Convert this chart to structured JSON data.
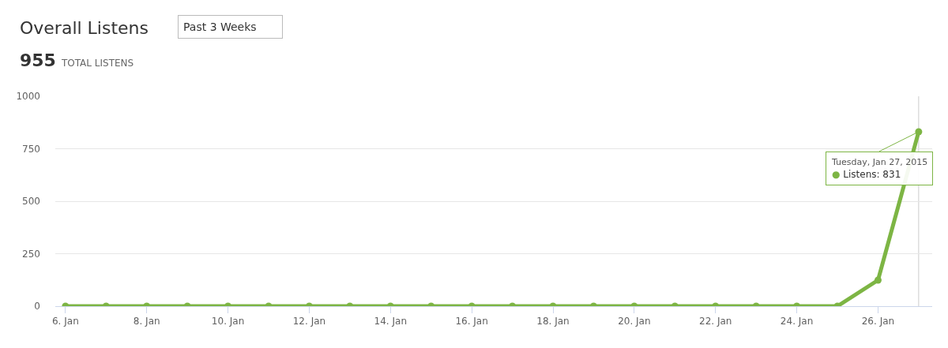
{
  "chart_data": {
    "type": "line",
    "title": "Overall Listens",
    "subtitle": "955 TOTAL LISTENS",
    "annotations": [
      "Past 3 Weeks",
      {
        "text": "Tuesday, Jan 27, 2015\n● Listens: 831",
        "x": "2015-01-27",
        "y": 831
      }
    ],
    "x": [
      "2015-01-06",
      "2015-01-07",
      "2015-01-08",
      "2015-01-09",
      "2015-01-10",
      "2015-01-11",
      "2015-01-12",
      "2015-01-13",
      "2015-01-14",
      "2015-01-15",
      "2015-01-16",
      "2015-01-17",
      "2015-01-18",
      "2015-01-19",
      "2015-01-20",
      "2015-01-21",
      "2015-01-22",
      "2015-01-23",
      "2015-01-24",
      "2015-01-25",
      "2015-01-26",
      "2015-01-27"
    ],
    "series": [
      {
        "color": "#7db544",
        "values": [
          0,
          0,
          0,
          0,
          0,
          0,
          0,
          0,
          0,
          0,
          0,
          0,
          0,
          0,
          0,
          0,
          0,
          0,
          0,
          0,
          124,
          831
        ]
      }
    ],
    "xlim": [
      "2015-01-05T18:00",
      "2015-01-27T08:00"
    ],
    "xticks": [
      {
        "value": "2015-01-06",
        "label": "6. Jan"
      },
      {
        "value": "2015-01-08",
        "label": "8. Jan"
      },
      {
        "value": "2015-01-10",
        "label": "10. Jan"
      },
      {
        "value": "2015-01-12",
        "label": "12. Jan"
      },
      {
        "value": "2015-01-14",
        "label": "14. Jan"
      },
      {
        "value": "2015-01-16",
        "label": "16. Jan"
      },
      {
        "value": "2015-01-18",
        "label": "18. Jan"
      },
      {
        "value": "2015-01-20",
        "label": "20. Jan"
      },
      {
        "value": "2015-01-22",
        "label": "22. Jan"
      },
      {
        "value": "2015-01-24",
        "label": "24. Jan"
      },
      {
        "value": "2015-01-26",
        "label": "26. Jan"
      }
    ],
    "ylim": [
      0,
      1000
    ],
    "yticks": [
      0,
      250,
      500,
      750,
      1000
    ],
    "ref_lines": [
      {
        "axis": "x",
        "value": "2015-01-27",
        "color": "#cccccc"
      }
    ],
    "grid": "y",
    "marker": "circle",
    "line_style": "solid"
  }
}
